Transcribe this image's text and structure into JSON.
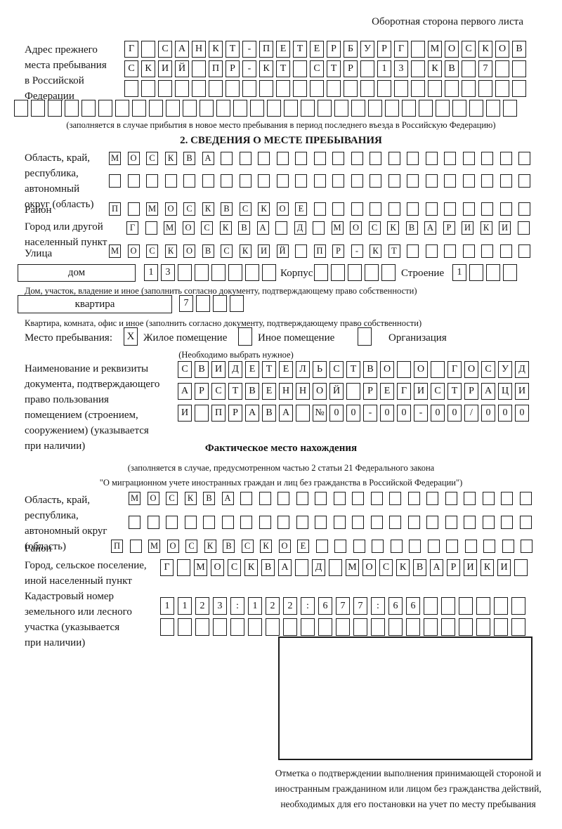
{
  "page": {
    "back_note": "Оборотная сторона первого листа"
  },
  "prev_address": {
    "label": "Адрес прежнего\nместа пребывания\nв Российской\nФедерации",
    "rows": [
      {
        "text": "Г САНКТ-ПЕТЕРБУРГ МОСКОВ",
        "count": 24
      },
      {
        "text": "СКИЙ ПР-КТ СТР 13 КВ 7",
        "count": 24
      },
      {
        "text": "",
        "count": 24
      },
      {
        "text": "",
        "count": 30
      }
    ],
    "note": "(заполняется в случае прибытия в новое место пребывания в период последнего въезда в Российскую Федерацию)"
  },
  "section2": {
    "title": "2. СВЕДЕНИЯ О МЕСТЕ ПРЕБЫВАНИЯ",
    "region_label": "Область, край,\nреспублика,\nавтономный\nокруг (область)",
    "region_rows": [
      {
        "text": "МОСКВА",
        "count": 23
      },
      {
        "text": "",
        "count": 23
      }
    ],
    "district_label": "Район",
    "district_row": {
      "text": "П МОСКВСКОЕ",
      "count": 23
    },
    "city_label": "Город или другой\nнаселенный пункт",
    "city_row": {
      "text": "Г МОСКВА Д МОСКВАРИКИ",
      "count": 22
    },
    "street_label": "Улица",
    "street_row": {
      "text": "МОСКОВСКИЙ ПР-КТ",
      "count": 23
    },
    "house_label": "дом",
    "house_row": {
      "text": "13",
      "count": 8
    },
    "korpus_label": "Корпус",
    "korpus_row": {
      "text": "",
      "count": 5
    },
    "stroenie_label": "Строение",
    "stroenie_row": {
      "text": "1",
      "count": 4
    },
    "house_note": "Дом, участок, владение и иное (заполнить согласно документу, подтверждающему право собственности)",
    "apartment_label": "квартира",
    "apartment_row": {
      "text": "7",
      "count": 4
    },
    "apartment_note": "Квартира, комната, офис и иное (заполнить согласно документу, подтверждающему право собственности)",
    "stay_label": "Место пребывания:",
    "stay_options": [
      {
        "label": "Жилое помещение",
        "mark": "X"
      },
      {
        "label": "Иное помещение",
        "mark": ""
      },
      {
        "label": "Организация",
        "mark": ""
      }
    ],
    "stay_note": "(Необходимо выбрать нужное)",
    "doc_label": "Наименование и реквизиты\nдокумента, подтверждающего\nправо пользования\nпомещением (строением,\nсооружением) (указывается\nпри наличии)",
    "doc_rows": [
      {
        "text": "СВИДЕТЕЛЬСТВО О ГОСУД",
        "count": 21
      },
      {
        "text": "АРСТВЕННОЙ РЕГИСТРАЦИ",
        "count": 21
      },
      {
        "text": "И ПРАВА №00-00-00/000",
        "count": 21
      }
    ]
  },
  "section3": {
    "title": "Фактическое место нахождения",
    "note": "(заполняется в случае, предусмотренном частью 2 статьи 21 Федерального закона\n\"О миграционном учете иностранных граждан и лиц без гражданства в Российской Федерации\")",
    "region_label": "Область, край,\nреспублика,\nавтономный округ\n(область)",
    "region_rows": [
      {
        "text": "МОСКВА",
        "count": 22
      },
      {
        "text": "",
        "count": 22
      }
    ],
    "district_label": "Район",
    "district_row": {
      "text": "П МОСКВСКОЕ",
      "count": 23
    },
    "city_label": "Город, сельское поселение,\nиной населенный пункт",
    "city_row": {
      "text": "Г МОСКВА Д МОСКВАРИКИ",
      "count": 22
    },
    "cadastre_label": "Кадастровый номер\nземельного или лесного\nучастка (указывается\nпри наличии)",
    "cadastre_rows": [
      {
        "text": "1123:122:677:66",
        "count": 21
      },
      {
        "text": "",
        "count": 21
      }
    ],
    "mark_caption": "Отметка о подтверждении выполнения принимающей стороной и иностранным гражданином или лицом без гражданства действий, необходимых для его постановки на учет по месту пребывания"
  }
}
